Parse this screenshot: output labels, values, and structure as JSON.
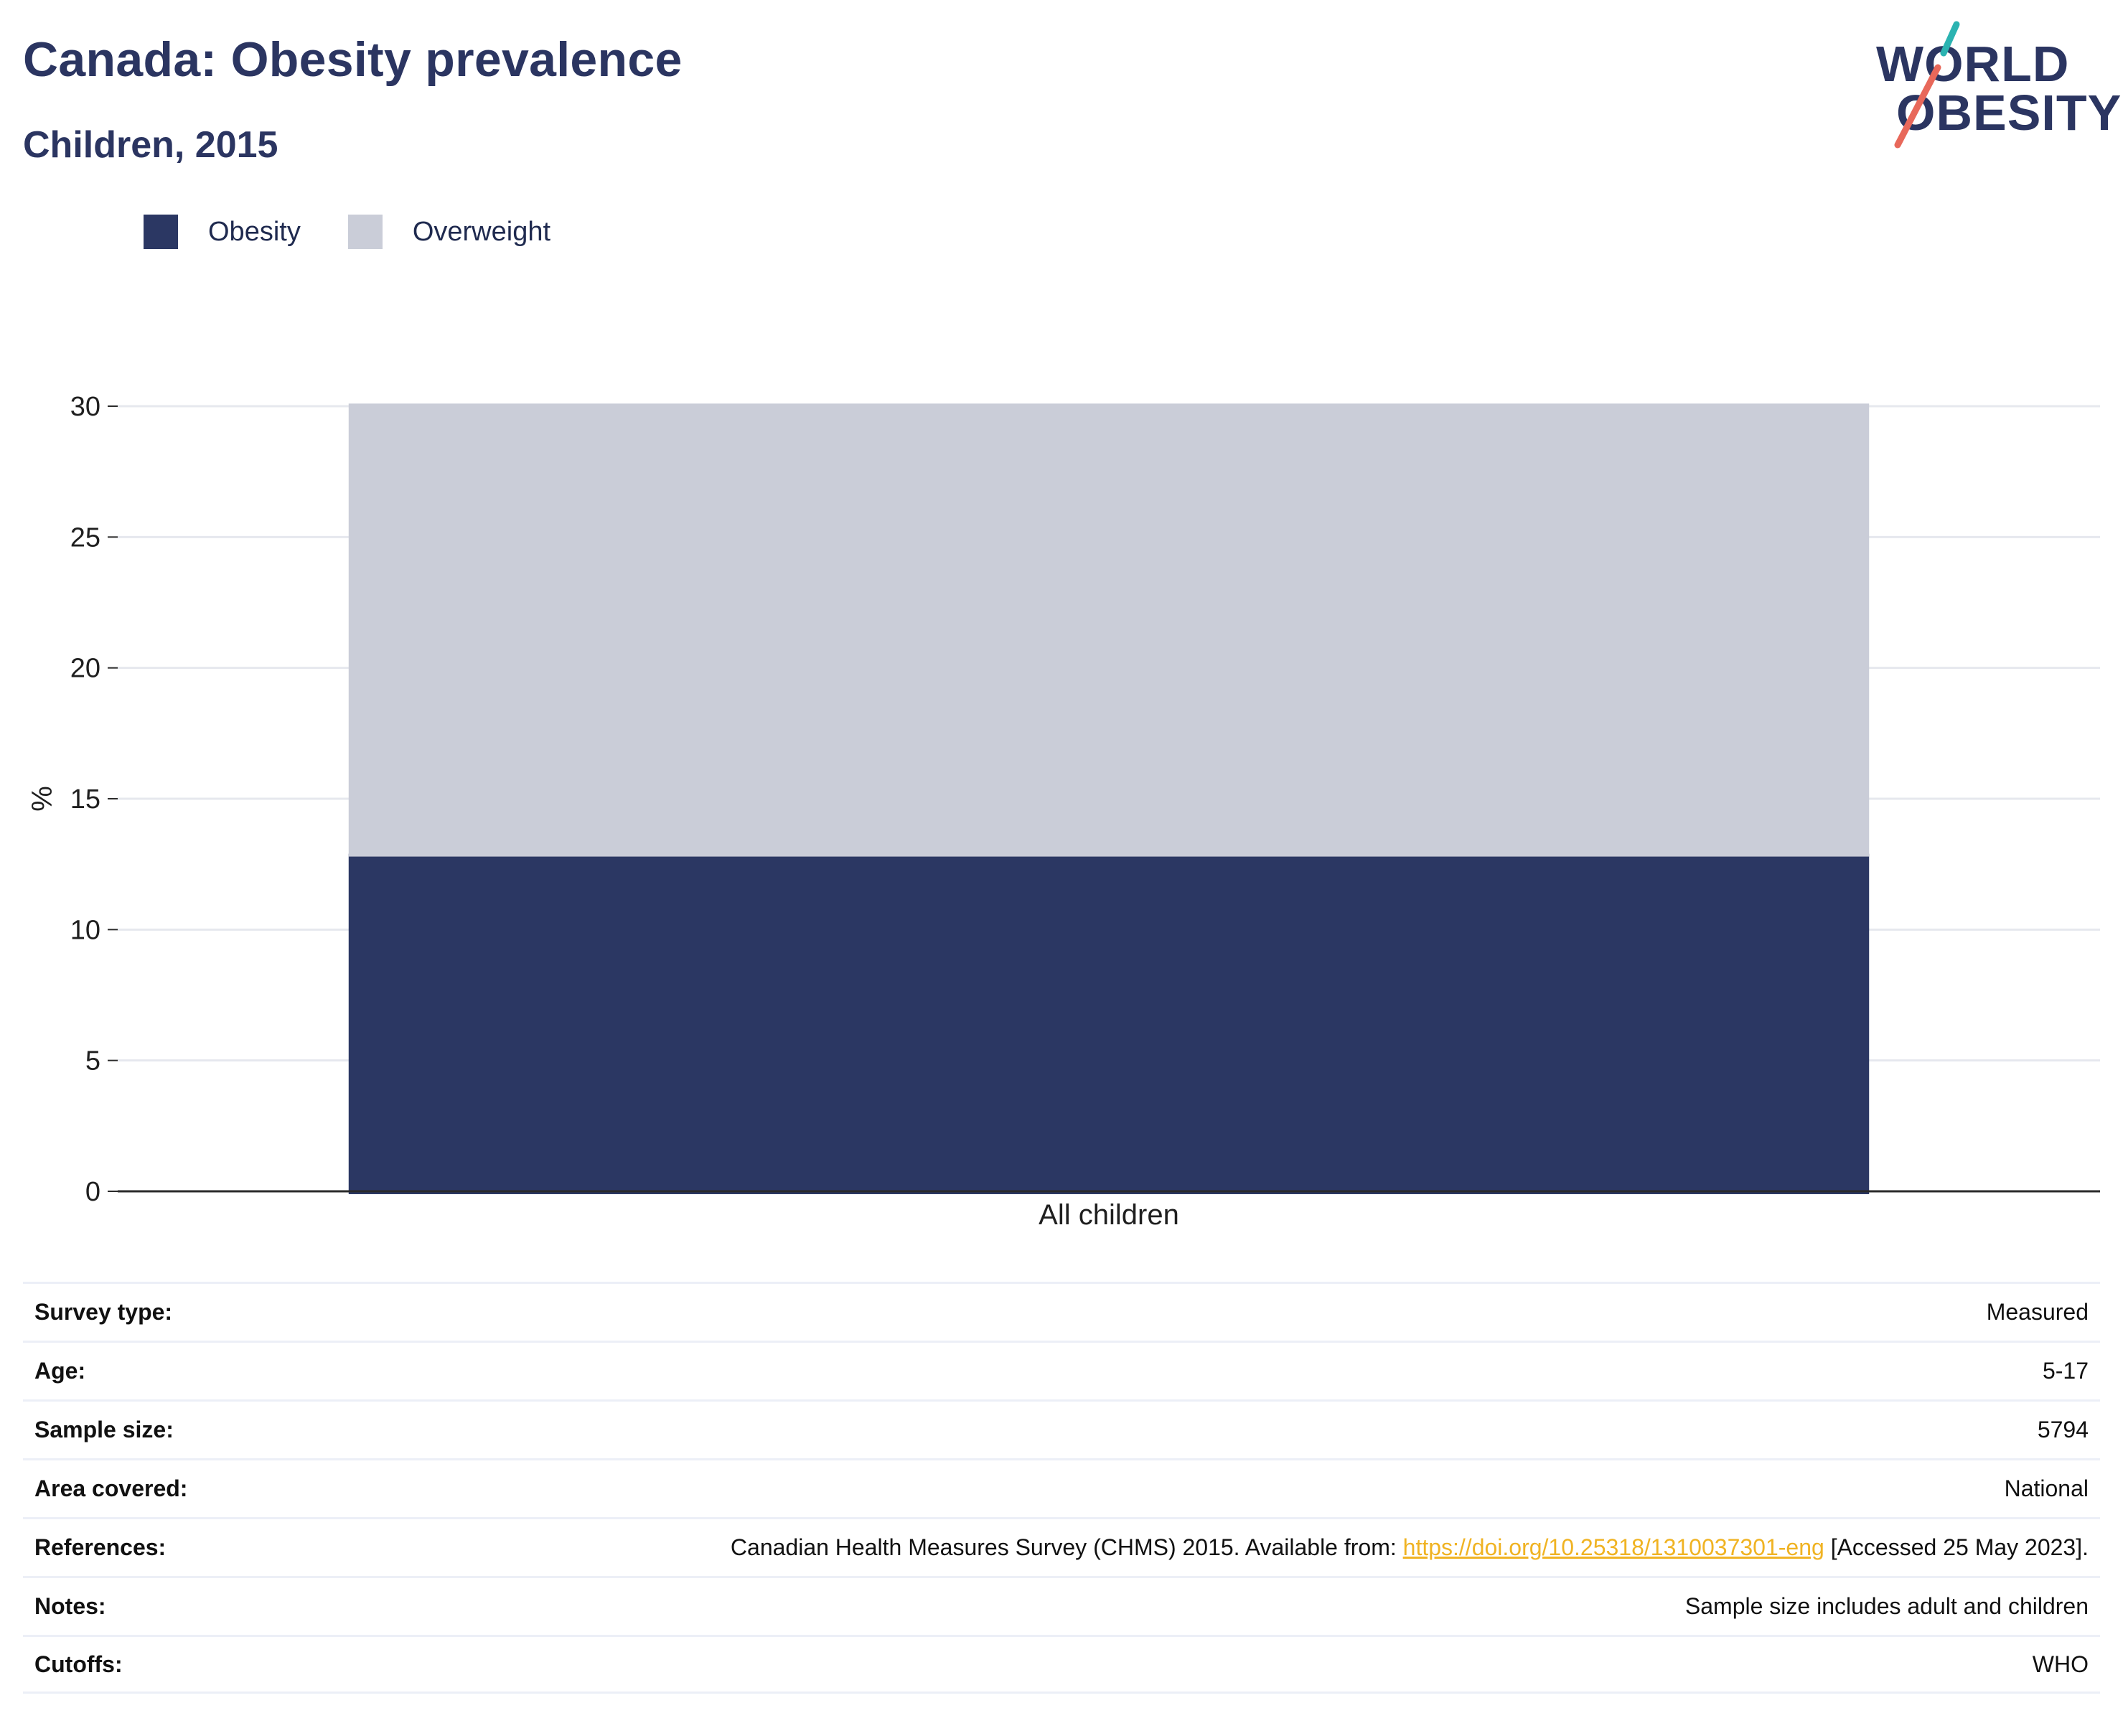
{
  "header": {
    "title": "Canada: Obesity prevalence",
    "subtitle": "Children, 2015"
  },
  "logo": {
    "line1": "WORLD",
    "line2": "OBESITY",
    "accent_teal": "#2bb3b1",
    "accent_coral": "#e8685a"
  },
  "colors": {
    "obesity": "#2b3763",
    "overweight": "#cacdd8",
    "gridline": "#e6e8ee",
    "axis": "#2a2a2a",
    "link": "#f0b323"
  },
  "legend": {
    "items": [
      {
        "label": "Obesity",
        "color": "#2b3763"
      },
      {
        "label": "Overweight",
        "color": "#cacdd8"
      }
    ]
  },
  "chart_data": {
    "type": "bar",
    "stacked": true,
    "categories": [
      "All children"
    ],
    "series": [
      {
        "name": "Obesity",
        "values": [
          12.9
        ],
        "color": "#2b3763"
      },
      {
        "name": "Overweight",
        "values": [
          17.2
        ],
        "color": "#cacdd8"
      }
    ],
    "ylabel": "%",
    "xlabel": "",
    "ylim": [
      0,
      30
    ],
    "yticks": [
      0,
      5,
      10,
      15,
      20,
      25,
      30
    ],
    "grid": true,
    "legend_position": "top-left"
  },
  "info": {
    "rows": [
      {
        "key": "Survey type:",
        "value": "Measured"
      },
      {
        "key": "Age:",
        "value": "5-17"
      },
      {
        "key": "Sample size:",
        "value": "5794"
      },
      {
        "key": "Area covered:",
        "value": "National"
      },
      {
        "key": "References:",
        "value_prefix": "Canadian Health Measures Survey (CHMS) 2015. Available from: ",
        "link": "https://doi.org/10.25318/1310037301-eng",
        "value_suffix": " [Accessed 25 May 2023]."
      },
      {
        "key": "Notes:",
        "value": "Sample size includes adult and children"
      },
      {
        "key": "Cutoffs:",
        "value": "WHO"
      }
    ]
  }
}
